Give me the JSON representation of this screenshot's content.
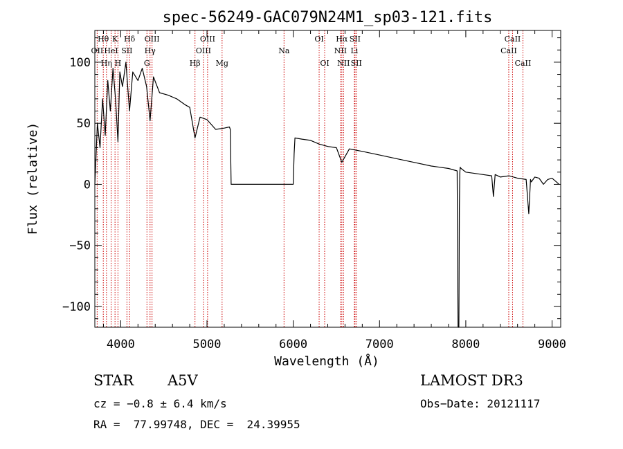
{
  "chart_data": {
    "type": "line",
    "title": "spec-56249-GAC079N24M1_sp03-121.fits",
    "xlabel": "Wavelength (Å)",
    "ylabel": "Flux (relative)",
    "xlim": [
      3700,
      9100
    ],
    "ylim": [
      -117,
      126
    ],
    "xticks": [
      4000,
      5000,
      6000,
      7000,
      8000,
      9000
    ],
    "xtick_labels": [
      "4000",
      "5000",
      "6000",
      "7000",
      "8000",
      "9000"
    ],
    "yticks": [
      -100,
      -50,
      0,
      50,
      100
    ],
    "ytick_labels": [
      "−100",
      "−50",
      "0",
      "50",
      "100"
    ],
    "spectrum": {
      "name": "flux",
      "x": [
        3700,
        3730,
        3760,
        3790,
        3820,
        3850,
        3880,
        3910,
        3940,
        3968,
        3990,
        4020,
        4060,
        4102,
        4140,
        4200,
        4250,
        4300,
        4340,
        4380,
        4450,
        4550,
        4650,
        4750,
        4800,
        4861,
        4920,
        5000,
        5100,
        5200,
        5260,
        5270,
        5280,
        5300,
        5500,
        5700,
        5900,
        6000,
        6010,
        6020,
        6100,
        6200,
        6300,
        6400,
        6500,
        6563,
        6650,
        6800,
        7000,
        7200,
        7400,
        7600,
        7800,
        7900,
        7910,
        7920,
        7925,
        7930,
        7935,
        7945,
        8000,
        8200,
        8300,
        8320,
        8340,
        8400,
        8500,
        8600,
        8700,
        8730,
        8750,
        8760,
        8800,
        8850,
        8900,
        8950,
        9000,
        9050,
        9080
      ],
      "y": [
        0,
        50,
        30,
        70,
        40,
        85,
        60,
        95,
        70,
        35,
        92,
        80,
        100,
        60,
        92,
        85,
        95,
        80,
        52,
        88,
        75,
        73,
        70,
        65,
        63,
        38,
        55,
        53,
        45,
        46,
        47,
        45,
        0,
        0,
        0,
        0,
        0,
        0,
        25,
        38,
        37,
        36,
        33,
        31,
        30,
        18,
        29,
        27,
        24,
        21,
        18,
        15,
        13,
        11,
        -117,
        -117,
        -20,
        9,
        14,
        13,
        10,
        8,
        7,
        -10,
        8,
        6,
        7,
        5,
        4,
        -24,
        4,
        2,
        6,
        5,
        0,
        4,
        5,
        2,
        0
      ]
    },
    "spectral_lines": [
      {
        "name": "Hθ",
        "wavelength": 3798,
        "row": 1
      },
      {
        "name": "OII",
        "wavelength": 3727,
        "row": 2
      },
      {
        "name": "Hη",
        "wavelength": 3835,
        "row": 3
      },
      {
        "name": "K",
        "wavelength": 3934,
        "row": 1
      },
      {
        "name": "HeI",
        "wavelength": 3889,
        "row": 2
      },
      {
        "name": "SII",
        "wavelength": 4072,
        "row": 2
      },
      {
        "name": "H",
        "wavelength": 3968,
        "row": 3
      },
      {
        "name": "Hδ",
        "wavelength": 4102,
        "row": 1
      },
      {
        "name": "OIII",
        "wavelength": 4363,
        "row": 1
      },
      {
        "name": "Hγ",
        "wavelength": 4340,
        "row": 2
      },
      {
        "name": "G",
        "wavelength": 4304,
        "row": 3
      },
      {
        "name": "OIII",
        "wavelength": 5007,
        "row": 1
      },
      {
        "name": "OIII",
        "wavelength": 4959,
        "row": 2
      },
      {
        "name": "Hβ",
        "wavelength": 4861,
        "row": 3
      },
      {
        "name": "Mg",
        "wavelength": 5175,
        "row": 3
      },
      {
        "name": "Na",
        "wavelength": 5893,
        "row": 2
      },
      {
        "name": "OI",
        "wavelength": 6300,
        "row": 1
      },
      {
        "name": "OI",
        "wavelength": 6364,
        "row": 3
      },
      {
        "name": "Hα",
        "wavelength": 6563,
        "row": 1
      },
      {
        "name": "SII",
        "wavelength": 6716,
        "row": 1
      },
      {
        "name": "NII",
        "wavelength": 6548,
        "row": 2
      },
      {
        "name": "Li",
        "wavelength": 6708,
        "row": 2
      },
      {
        "name": "NII",
        "wavelength": 6583,
        "row": 3
      },
      {
        "name": "SII",
        "wavelength": 6731,
        "row": 3
      },
      {
        "name": "CaII",
        "wavelength": 8542,
        "row": 1
      },
      {
        "name": "CaII",
        "wavelength": 8498,
        "row": 2
      },
      {
        "name": "CaII",
        "wavelength": 8662,
        "row": 3
      }
    ]
  },
  "info": {
    "object_class": "STAR",
    "subclass": "A5V",
    "survey": "LAMOST DR3",
    "redshift": "cz = −0.8 ± 6.4 km/s",
    "obs_date": "Obs−Date: 20121117",
    "coords": "RA =  77.99748, DEC =  24.39955"
  },
  "colors": {
    "line_markers": "#cc0000",
    "spectrum": "#000000",
    "axes": "#000000"
  }
}
